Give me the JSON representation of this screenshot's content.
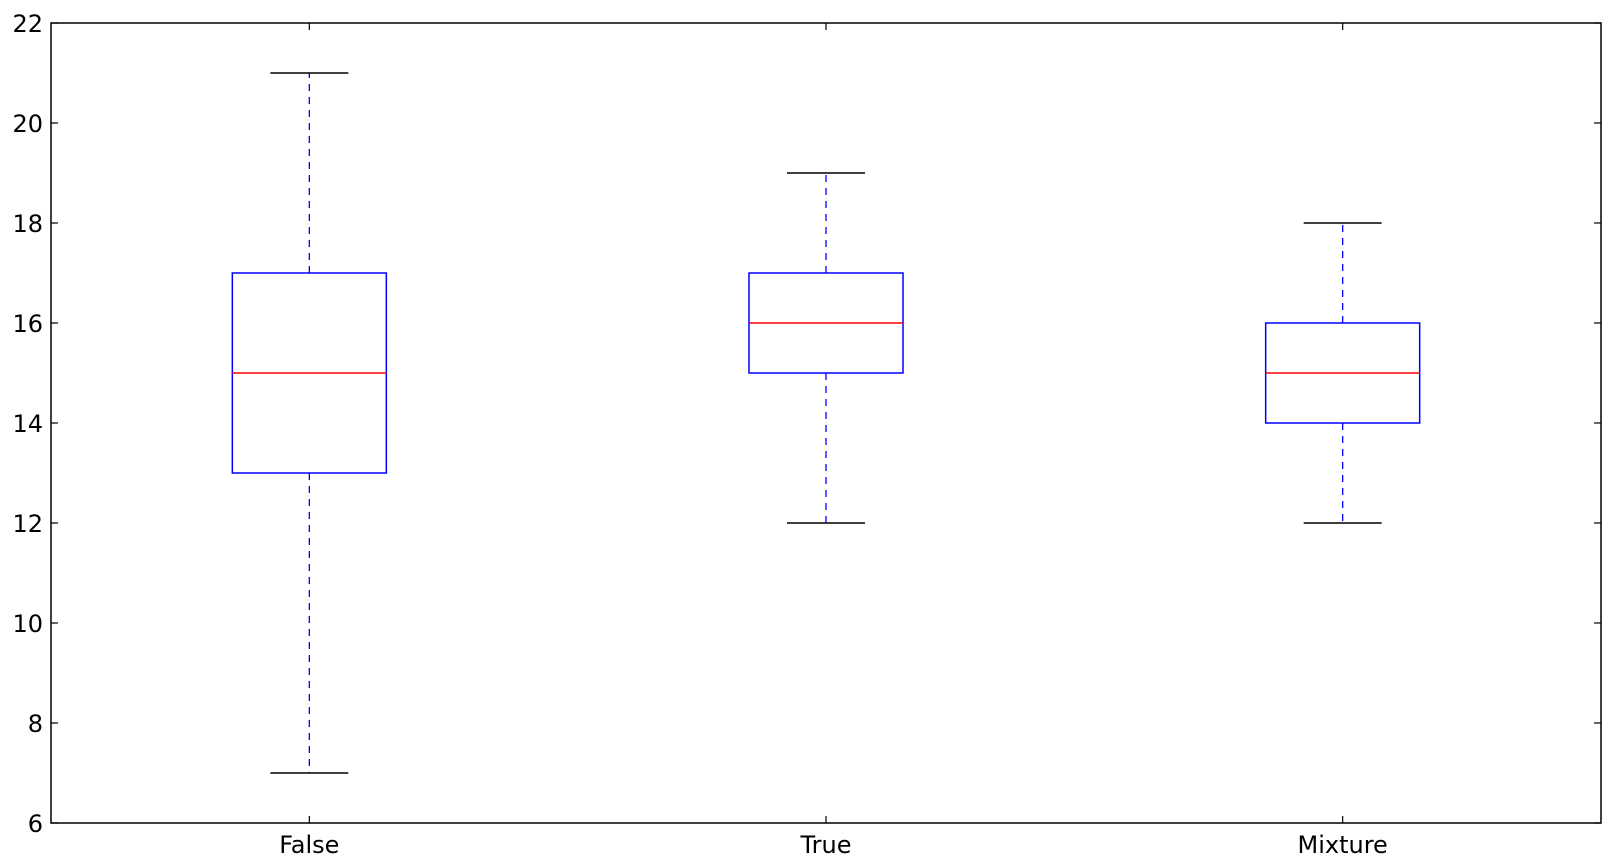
{
  "chart_data": {
    "type": "boxplot",
    "title": "",
    "xlabel": "",
    "ylabel": "",
    "ylim": [
      6,
      22
    ],
    "yticks": [
      6,
      8,
      10,
      12,
      14,
      16,
      18,
      20,
      22
    ],
    "grid": false,
    "categories": [
      "False",
      "True",
      "Mixture"
    ],
    "boxes": [
      {
        "category": "False",
        "whisker_low": 7,
        "q1": 13,
        "median": 15,
        "q3": 17,
        "whisker_high": 21
      },
      {
        "category": "True",
        "whisker_low": 12,
        "q1": 15,
        "median": 16,
        "q3": 17,
        "whisker_high": 19
      },
      {
        "category": "Mixture",
        "whisker_low": 12,
        "q1": 14,
        "median": 15,
        "q3": 16,
        "whisker_high": 18
      }
    ],
    "colors": {
      "box": "#0000ff",
      "median": "#ff0000",
      "whisker": "#0000ff",
      "cap": "#000000",
      "axes": "#000000"
    }
  }
}
